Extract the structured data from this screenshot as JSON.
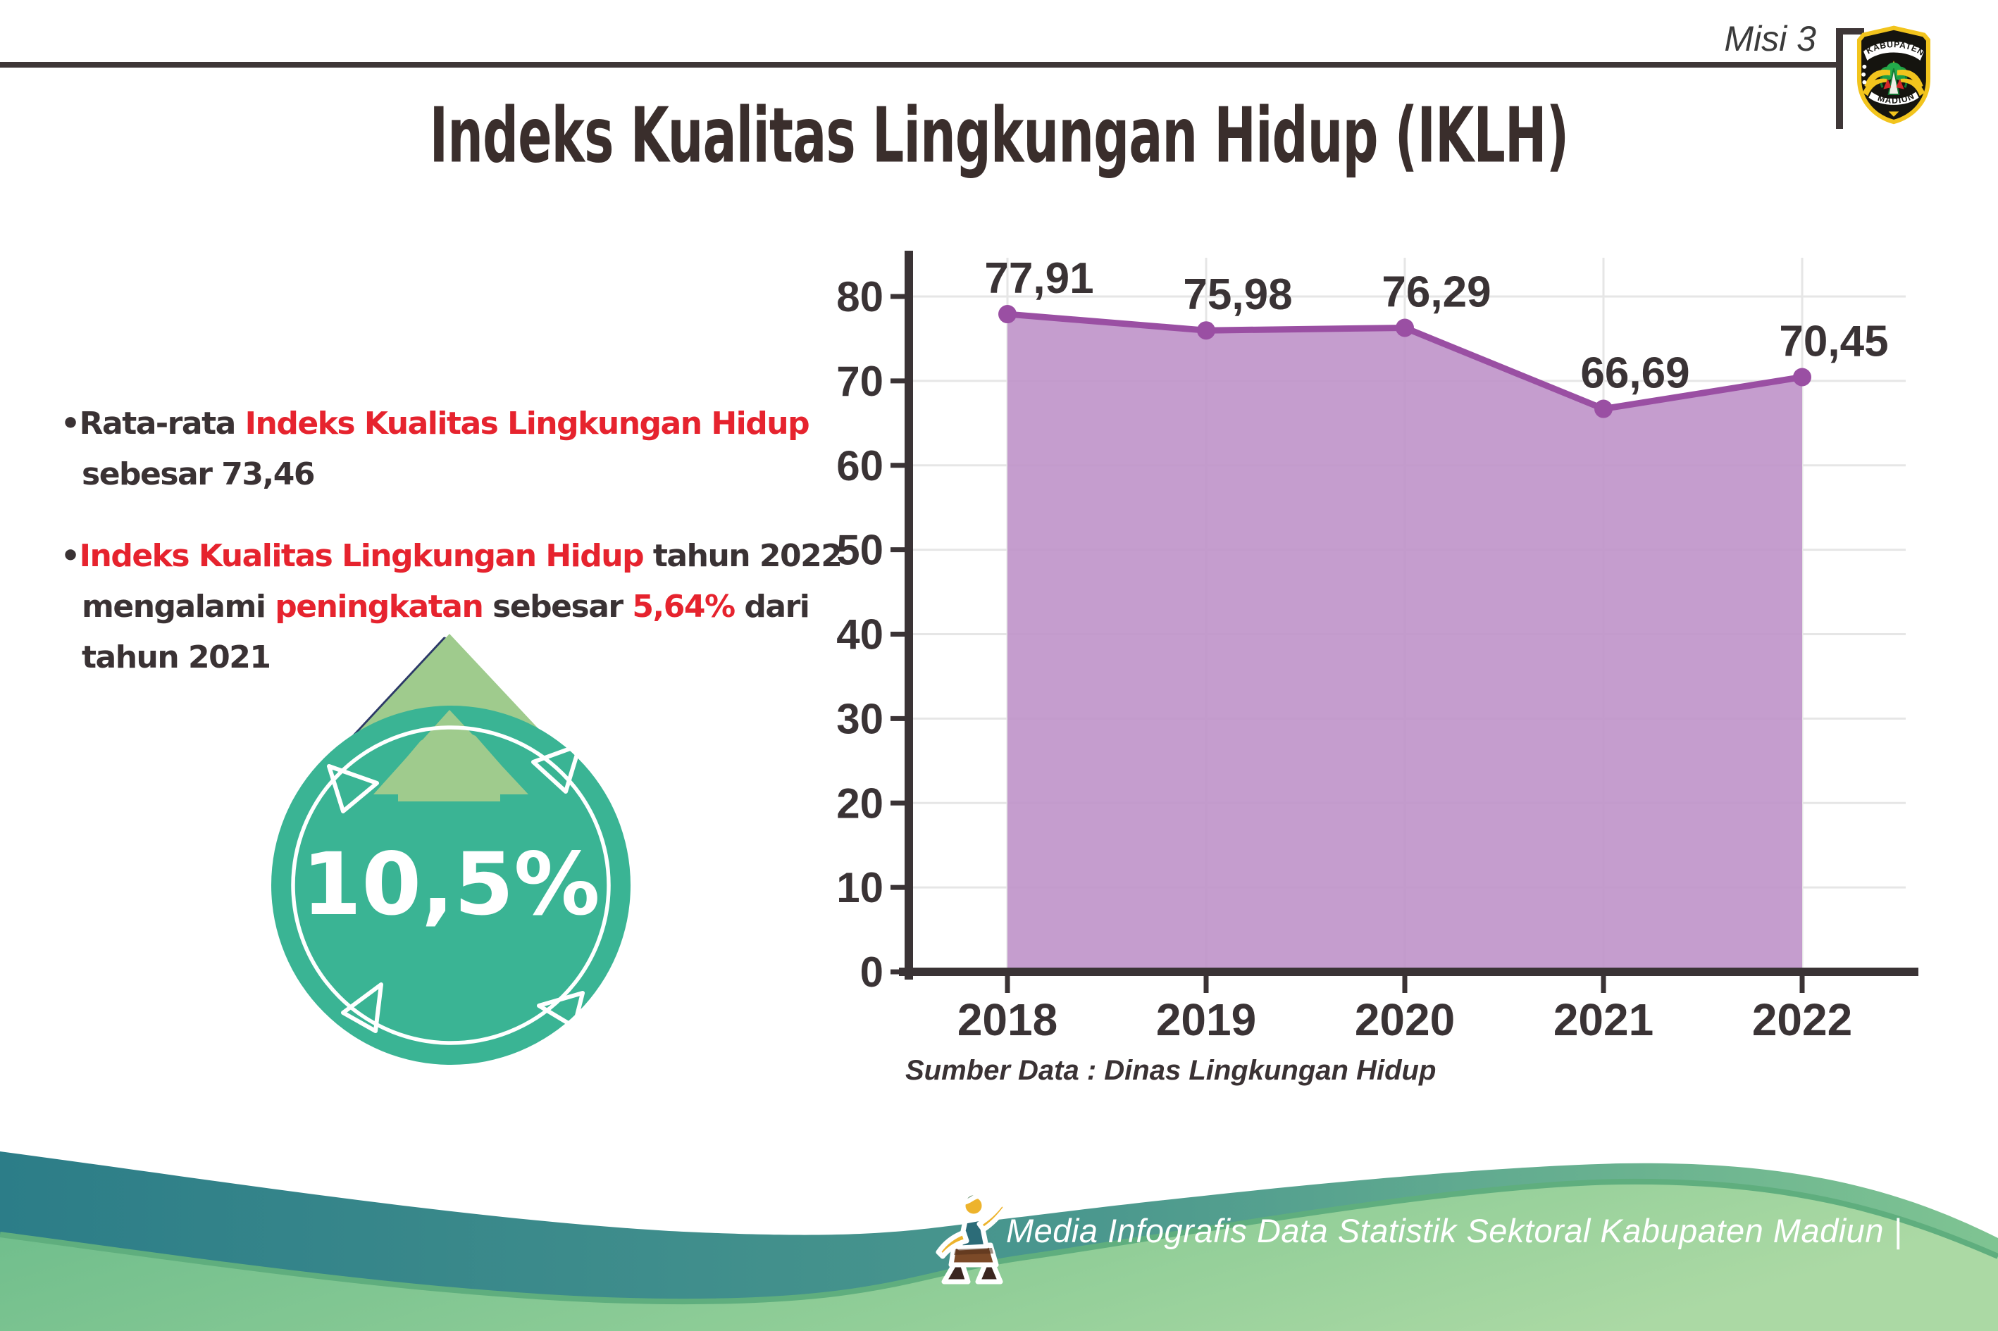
{
  "header": {
    "misi": "Misi 3",
    "title": "Indeks Kualitas Lingkungan Hidup (IKLH)"
  },
  "logo": {
    "top": "KABUPATEN",
    "bottom": "MADIUN"
  },
  "bullets": [
    {
      "segments": [
        {
          "t": "•Rata-rata ",
          "c": "dark"
        },
        {
          "t": "Indeks Kualitas Lingkungan Hidup",
          "c": "red"
        },
        {
          "t": " sebesar 73,46",
          "c": "dark"
        }
      ]
    },
    {
      "segments": [
        {
          "t": "•",
          "c": "dark"
        },
        {
          "t": "Indeks Kualitas Lingkungan Hidup",
          "c": "red"
        },
        {
          "t": " tahun 2022 mengalami ",
          "c": "dark"
        },
        {
          "t": "peningkatan",
          "c": "red"
        },
        {
          "t": " sebesar ",
          "c": "dark"
        },
        {
          "t": "5,64%",
          "c": "red"
        },
        {
          "t": " dari tahun 2021",
          "c": "dark"
        }
      ]
    }
  ],
  "badge": {
    "value": "10,5%"
  },
  "chart_data": {
    "type": "area",
    "categories": [
      "2018",
      "2019",
      "2020",
      "2021",
      "2022"
    ],
    "values": [
      77.91,
      75.98,
      76.29,
      66.69,
      70.45
    ],
    "point_labels": [
      "77,91",
      "75,98",
      "76,29",
      "66,69",
      "70,45"
    ],
    "title": "",
    "xlabel": "",
    "ylabel": "",
    "ylim": [
      0,
      80
    ],
    "ytick_step": 10,
    "grid": true,
    "legend": "none",
    "line_color": "#9a4fa3",
    "dot_color": "#9a4fa3",
    "fill_color": "#bf92c9",
    "grid_color": "#e6e6e6",
    "axis_color": "#3a3335",
    "tick_label_color": "#3a3335"
  },
  "source": "Sumber Data : Dinas Lingkungan Hidup",
  "footer": {
    "caption": "Media Infografis Data Statistik Sektoral Kabupaten Madiun |"
  },
  "palette": {
    "accent_red": "#e6232e",
    "text_dark": "#3a3234",
    "badge_teal": "#3ab494",
    "arrow_green": "#9fcb8d",
    "arrow_outline": "#2c3968",
    "footer_teal": "#2c7d88",
    "footer_green": "#7cc492"
  }
}
